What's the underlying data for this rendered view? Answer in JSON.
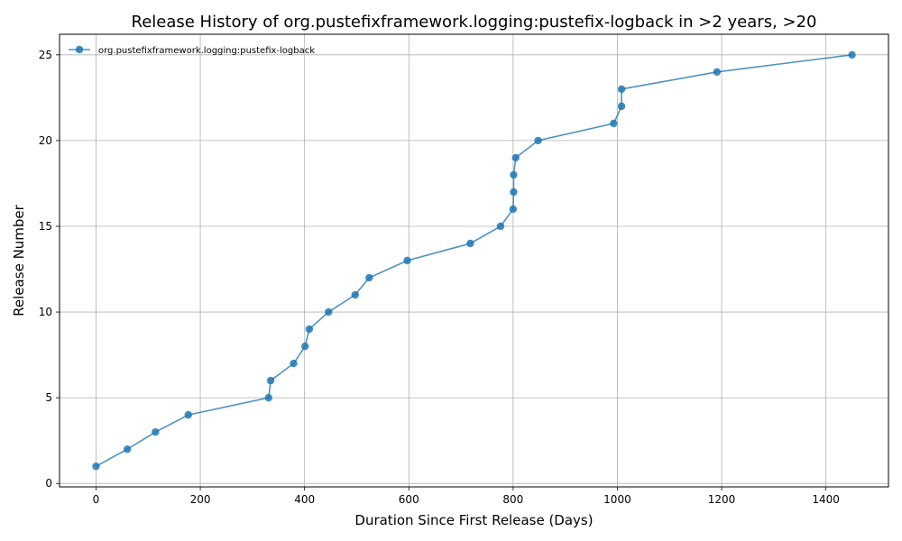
{
  "chart_data": {
    "type": "line",
    "title": "Release History of org.pustefixframework.logging:pustefix-logback in >2 years, >20",
    "xlabel": "Duration Since First Release (Days)",
    "ylabel": "Release Number",
    "xlim": [
      -70,
      1520
    ],
    "ylim": [
      -0.2,
      26.2
    ],
    "x_ticks": [
      0,
      200,
      400,
      600,
      800,
      1000,
      1200,
      1400
    ],
    "y_ticks": [
      0,
      5,
      10,
      15,
      20,
      25
    ],
    "grid": true,
    "legend": "top-left",
    "series": [
      {
        "name": "org.pustefixframework.logging:pustefix-logback",
        "color": "#1f77b4",
        "marker": "circle",
        "x": [
          0,
          60,
          114,
          177,
          331,
          335,
          379,
          401,
          409,
          446,
          497,
          524,
          597,
          718,
          776,
          800,
          801,
          801,
          805,
          848,
          993,
          1008,
          1008,
          1191,
          1450
        ],
        "y": [
          1,
          2,
          3,
          4,
          5,
          6,
          7,
          8,
          9,
          10,
          11,
          12,
          13,
          14,
          15,
          16,
          17,
          18,
          19,
          20,
          21,
          22,
          23,
          24,
          25
        ]
      }
    ]
  }
}
